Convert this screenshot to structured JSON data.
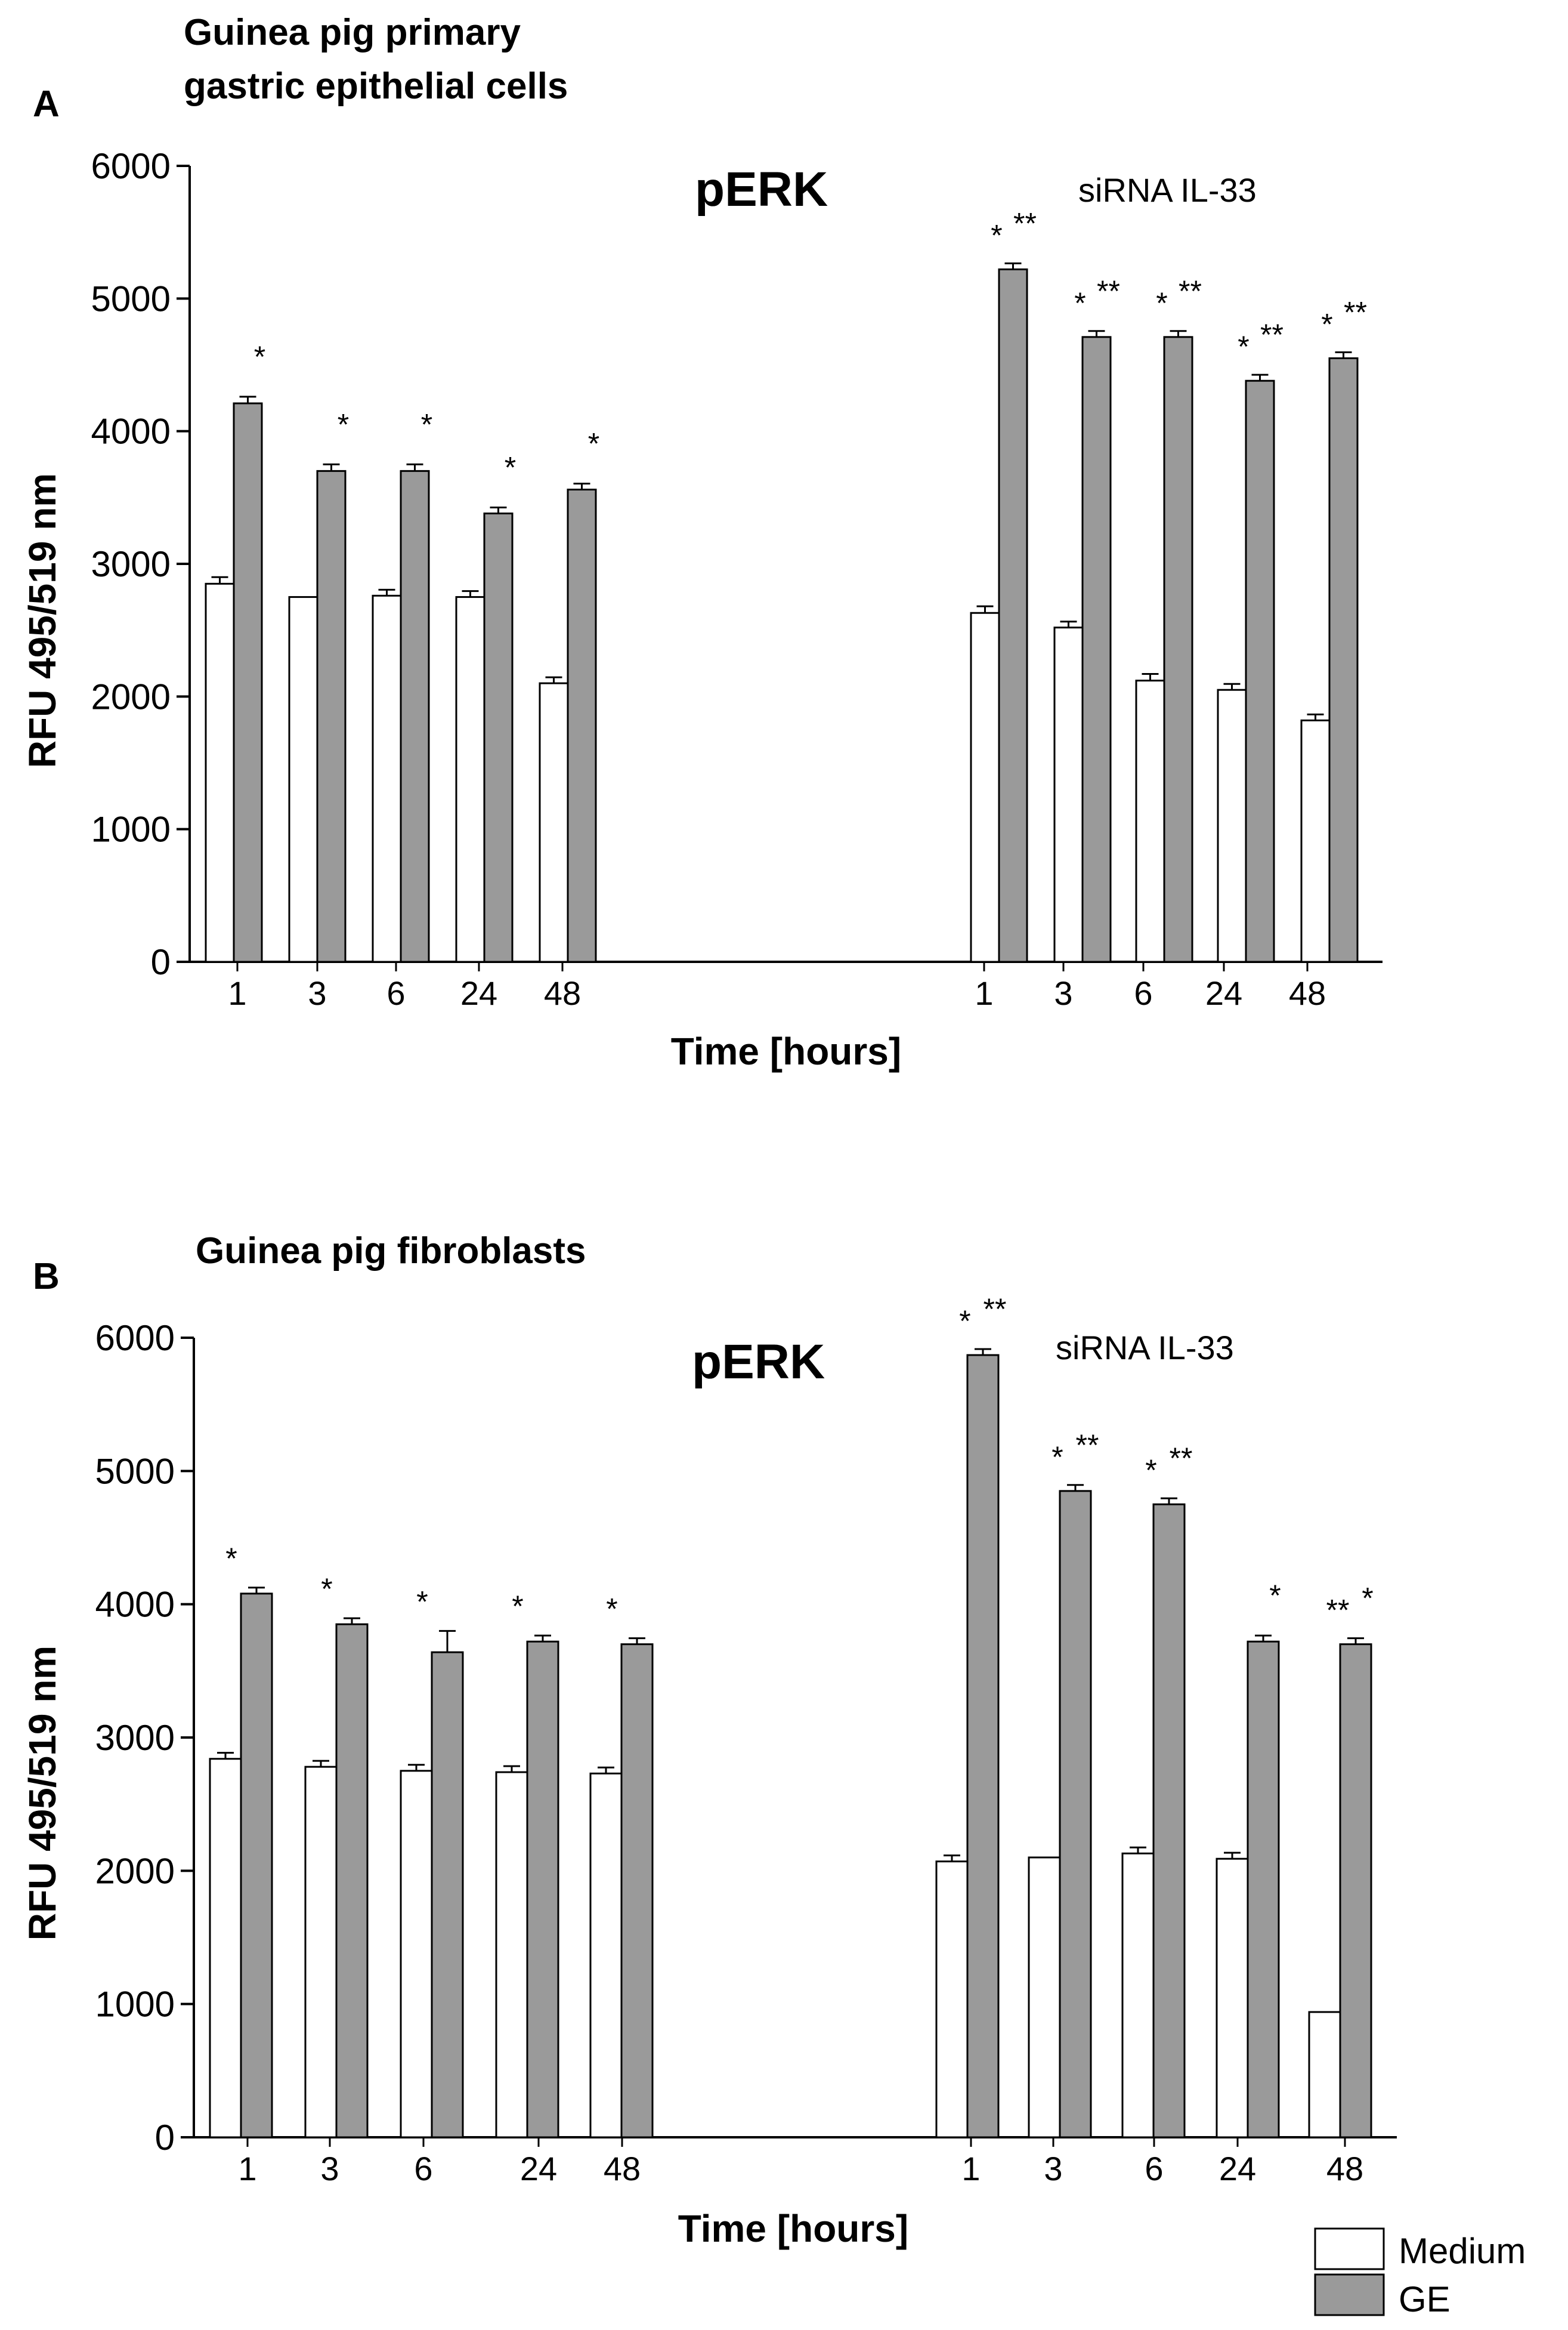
{
  "colors": {
    "medium": "#ffffff",
    "ge": "#9a9a9a",
    "stroke": "#000000"
  },
  "legend": {
    "items": [
      {
        "label": "Medium",
        "color": "#ffffff"
      },
      {
        "label": "GE",
        "color": "#9a9a9a"
      }
    ]
  },
  "chart_data": [
    {
      "type": "bar",
      "panel": "A",
      "title_lines": [
        "Guinea pig primary",
        "gastric epithelial cells"
      ],
      "annotation": "pERK",
      "group_label": "siRNA IL-33",
      "xlabel": "Time [hours]",
      "ylabel": "RFU 495/519 nm",
      "ylim": [
        0,
        6000
      ],
      "yticks": [
        0,
        1000,
        2000,
        3000,
        4000,
        5000,
        6000
      ],
      "groups": [
        {
          "categories": [
            "1",
            "3",
            "6",
            "24",
            "48"
          ],
          "series": [
            {
              "name": "Medium",
              "values": [
                2850,
                2750,
                2760,
                2750,
                2100
              ],
              "errors": [
                50,
                0,
                45,
                45,
                45
              ],
              "stars": [
                "",
                "",
                "",
                "",
                ""
              ]
            },
            {
              "name": "GE",
              "values": [
                4210,
                3700,
                3700,
                3380,
                3560
              ],
              "errors": [
                50,
                50,
                50,
                45,
                45
              ],
              "stars": [
                "*",
                "*",
                "*",
                "*",
                "*"
              ]
            }
          ]
        },
        {
          "categories": [
            "1",
            "3",
            "6",
            "24",
            "48"
          ],
          "series": [
            {
              "name": "Medium",
              "values": [
                2630,
                2520,
                2120,
                2050,
                1820
              ],
              "errors": [
                50,
                45,
                50,
                45,
                45
              ],
              "stars": [
                "*",
                "*",
                "*",
                "*",
                "*"
              ]
            },
            {
              "name": "GE",
              "values": [
                5220,
                4710,
                4710,
                4380,
                4550
              ],
              "errors": [
                45,
                45,
                45,
                45,
                45
              ],
              "stars": [
                "**",
                "**",
                "**",
                "**",
                "**"
              ]
            }
          ]
        }
      ]
    },
    {
      "type": "bar",
      "panel": "B",
      "title_lines": [
        "Guinea pig fibroblasts"
      ],
      "annotation": "pERK",
      "group_label": "siRNA IL-33",
      "xlabel": "Time [hours]",
      "ylabel": "RFU 495/519 nm",
      "ylim": [
        0,
        6000
      ],
      "yticks": [
        0,
        1000,
        2000,
        3000,
        4000,
        5000,
        6000
      ],
      "groups": [
        {
          "categories": [
            "1",
            "3",
            "6",
            "24",
            "48"
          ],
          "series": [
            {
              "name": "Medium",
              "values": [
                2840,
                2780,
                2750,
                2740,
                2730
              ],
              "errors": [
                45,
                45,
                45,
                45,
                45
              ],
              "stars": [
                "*",
                "*",
                "*",
                "*",
                "*"
              ]
            },
            {
              "name": "GE",
              "values": [
                4080,
                3850,
                3640,
                3720,
                3700
              ],
              "errors": [
                45,
                45,
                160,
                45,
                45
              ],
              "stars": [
                "",
                "",
                "",
                "",
                ""
              ]
            }
          ]
        },
        {
          "categories": [
            "1",
            "3",
            "6",
            "24",
            "48"
          ],
          "series": [
            {
              "name": "Medium",
              "values": [
                2070,
                2100,
                2130,
                2090,
                940
              ],
              "errors": [
                45,
                0,
                45,
                45,
                0
              ],
              "stars": [
                "*",
                "*",
                "*",
                "",
                "**"
              ]
            },
            {
              "name": "GE",
              "values": [
                5870,
                4850,
                4750,
                3720,
                3700
              ],
              "errors": [
                45,
                45,
                45,
                45,
                45
              ],
              "stars": [
                "**",
                "**",
                "**",
                "*",
                "*"
              ]
            }
          ]
        }
      ]
    }
  ]
}
